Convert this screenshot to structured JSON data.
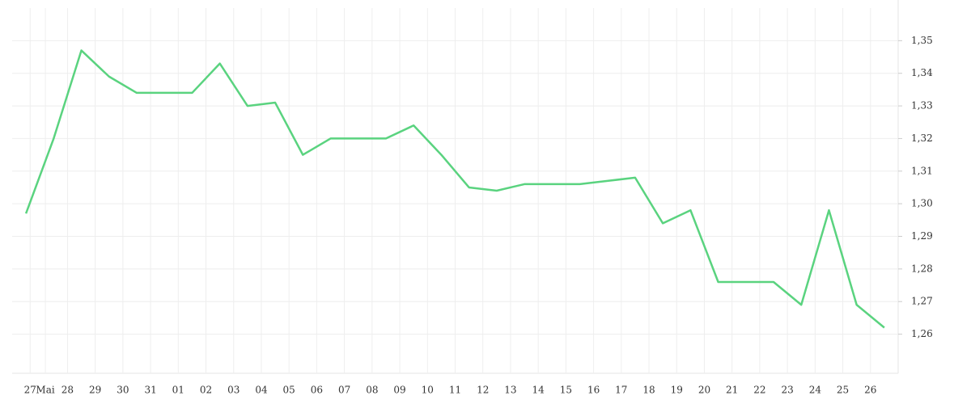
{
  "chart_data": {
    "type": "line",
    "x": [
      0,
      1,
      2,
      3,
      4,
      5,
      6,
      7,
      8,
      9,
      10,
      11,
      12,
      13,
      14,
      15,
      16,
      17,
      18,
      19,
      20,
      21,
      22,
      23,
      24,
      25,
      26,
      27,
      28,
      29,
      30,
      31
    ],
    "series": [
      {
        "color": "#5ad37f",
        "values": [
          1.297,
          1.32,
          1.347,
          1.339,
          1.334,
          1.334,
          1.334,
          1.343,
          1.33,
          1.331,
          1.315,
          1.32,
          1.32,
          1.32,
          1.324,
          1.315,
          1.305,
          1.304,
          1.306,
          1.306,
          1.306,
          1.307,
          1.308,
          1.294,
          1.298,
          1.276,
          1.276,
          1.276,
          1.269,
          1.298,
          1.269,
          1.262
        ]
      }
    ],
    "xlim": [
      -0.5,
      31.5
    ],
    "xticks": [
      {
        "value": 0.15,
        "label": "27"
      },
      {
        "value": 0.7,
        "label": "Mai"
      },
      {
        "value": 1.5,
        "label": "28"
      },
      {
        "value": 2.5,
        "label": "29"
      },
      {
        "value": 3.5,
        "label": "30"
      },
      {
        "value": 4.5,
        "label": "31"
      },
      {
        "value": 5.5,
        "label": "01"
      },
      {
        "value": 6.5,
        "label": "02"
      },
      {
        "value": 7.5,
        "label": "03"
      },
      {
        "value": 8.5,
        "label": "04"
      },
      {
        "value": 9.5,
        "label": "05"
      },
      {
        "value": 10.5,
        "label": "06"
      },
      {
        "value": 11.5,
        "label": "07"
      },
      {
        "value": 12.5,
        "label": "08"
      },
      {
        "value": 13.5,
        "label": "09"
      },
      {
        "value": 14.5,
        "label": "10"
      },
      {
        "value": 15.5,
        "label": "11"
      },
      {
        "value": 16.5,
        "label": "12"
      },
      {
        "value": 17.5,
        "label": "13"
      },
      {
        "value": 18.5,
        "label": "14"
      },
      {
        "value": 19.5,
        "label": "15"
      },
      {
        "value": 20.5,
        "label": "16"
      },
      {
        "value": 21.5,
        "label": "17"
      },
      {
        "value": 22.5,
        "label": "18"
      },
      {
        "value": 23.5,
        "label": "19"
      },
      {
        "value": 24.5,
        "label": "20"
      },
      {
        "value": 25.5,
        "label": "21"
      },
      {
        "value": 26.5,
        "label": "22"
      },
      {
        "value": 27.5,
        "label": "23"
      },
      {
        "value": 28.5,
        "label": "24"
      },
      {
        "value": 29.5,
        "label": "25"
      },
      {
        "value": 30.5,
        "label": "26"
      }
    ],
    "ylim": [
      1.248,
      1.36
    ],
    "yticks": [
      {
        "value": 1.26,
        "label": "1,26"
      },
      {
        "value": 1.27,
        "label": "1,27"
      },
      {
        "value": 1.28,
        "label": "1,28"
      },
      {
        "value": 1.29,
        "label": "1,29"
      },
      {
        "value": 1.3,
        "label": "1,30"
      },
      {
        "value": 1.31,
        "label": "1,31"
      },
      {
        "value": 1.32,
        "label": "1,32"
      },
      {
        "value": 1.33,
        "label": "1,33"
      },
      {
        "value": 1.34,
        "label": "1,34"
      },
      {
        "value": 1.35,
        "label": "1,35"
      }
    ],
    "grid": true
  }
}
